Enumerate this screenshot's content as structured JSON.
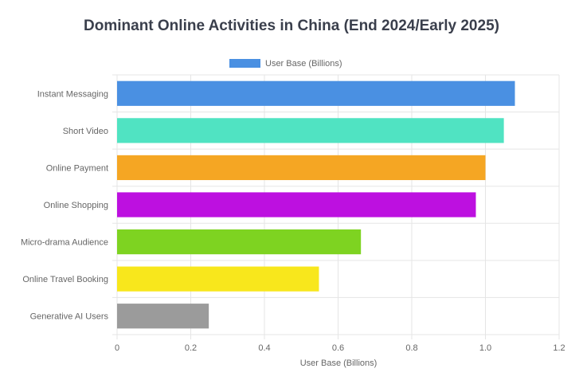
{
  "chart_data": {
    "type": "bar",
    "orientation": "horizontal",
    "title": "Dominant Online Activities in China (End 2024/Early 2025)",
    "xlabel": "User Base (Billions)",
    "ylabel": "",
    "xlim": [
      0,
      1.2
    ],
    "x_ticks": [
      "0",
      "0.2",
      "0.4",
      "0.6",
      "0.8",
      "1.0",
      "1.2"
    ],
    "grid": true,
    "legend_position": "top",
    "categories": [
      "Instant Messaging",
      "Short Video",
      "Online Payment",
      "Online Shopping",
      "Micro-drama Audience",
      "Online Travel Booking",
      "Generative AI Users"
    ],
    "series": [
      {
        "name": "User Base (Billions)",
        "values": [
          1.08,
          1.05,
          1.0,
          0.974,
          0.662,
          0.548,
          0.249
        ]
      }
    ],
    "colors": [
      "#4a90e2",
      "#50e3c2",
      "#f5a623",
      "#bd10e0",
      "#7ed321",
      "#f8e71c",
      "#9b9b9b"
    ],
    "legend_color": "#4a90e2"
  }
}
